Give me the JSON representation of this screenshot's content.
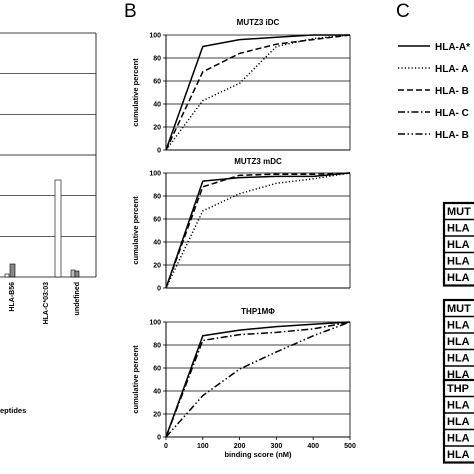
{
  "panels": {
    "b_letter": "B",
    "c_letter": "C"
  },
  "panel_a": {
    "bar_labels": [
      "HLA-B56",
      "HLA-C*03:03",
      "undefined"
    ],
    "footer_text": "eptides"
  },
  "chart_data": [
    {
      "type": "line",
      "title": "MUTZ3 iDC",
      "xlabel": "",
      "ylabel": "cumulative percent",
      "xlim": [
        0,
        500
      ],
      "ylim": [
        0,
        100
      ],
      "xticks": [],
      "yticks": [
        0,
        20,
        40,
        60,
        80,
        100
      ],
      "grid": true,
      "series": [
        {
          "style": "solid",
          "x": [
            0,
            100,
            200,
            300,
            400,
            500
          ],
          "y": [
            0,
            90,
            96,
            98,
            100,
            100
          ]
        },
        {
          "style": "dotted",
          "x": [
            0,
            100,
            200,
            300,
            400,
            500
          ],
          "y": [
            0,
            43,
            58,
            90,
            97,
            100
          ]
        },
        {
          "style": "dashed",
          "x": [
            0,
            100,
            200,
            300,
            400,
            500
          ],
          "y": [
            0,
            68,
            84,
            92,
            96,
            100
          ]
        }
      ]
    },
    {
      "type": "line",
      "title": "MUTZ3 mDC",
      "xlabel": "",
      "ylabel": "cumulative percent",
      "xlim": [
        0,
        500
      ],
      "ylim": [
        0,
        100
      ],
      "xticks": [],
      "yticks": [
        0,
        20,
        40,
        60,
        80,
        100
      ],
      "grid": true,
      "series": [
        {
          "style": "solid",
          "x": [
            0,
            100,
            200,
            300,
            400,
            500
          ],
          "y": [
            0,
            93,
            96,
            97,
            97,
            100
          ]
        },
        {
          "style": "dotted",
          "x": [
            0,
            100,
            200,
            300,
            400,
            500
          ],
          "y": [
            0,
            67,
            82,
            91,
            95,
            100
          ]
        },
        {
          "style": "dashed",
          "x": [
            0,
            100,
            200,
            300,
            400,
            500
          ],
          "y": [
            0,
            88,
            98,
            99,
            99,
            100
          ]
        }
      ]
    },
    {
      "type": "line",
      "title": "THP1MΦ",
      "xlabel": "binding score (nM)",
      "ylabel": "cumulative percent",
      "xlim": [
        0,
        500
      ],
      "ylim": [
        0,
        100
      ],
      "xticks": [
        0,
        100,
        200,
        300,
        400,
        500
      ],
      "yticks": [
        0,
        20,
        40,
        60,
        80,
        100
      ],
      "grid": true,
      "series": [
        {
          "style": "solid",
          "x": [
            0,
            100,
            200,
            300,
            400,
            500
          ],
          "y": [
            0,
            88,
            93,
            96,
            98,
            100
          ]
        },
        {
          "style": "dash-dot",
          "x": [
            0,
            100,
            200,
            300,
            400,
            500
          ],
          "y": [
            0,
            84,
            89,
            91,
            94,
            100
          ]
        },
        {
          "style": "dash-dot-dot",
          "x": [
            0,
            100,
            200,
            300,
            400,
            500
          ],
          "y": [
            0,
            36,
            59,
            74,
            88,
            100
          ]
        }
      ]
    }
  ],
  "legend": {
    "entries": [
      {
        "label": "HLA-A*",
        "style": "solid"
      },
      {
        "label": "HLA- A",
        "style": "dotted"
      },
      {
        "label": "HLA- B",
        "style": "dashed"
      },
      {
        "label": "HLA- C",
        "style": "dash-dot"
      },
      {
        "label": "HLA- B",
        "style": "dash-dot-dot"
      }
    ]
  },
  "tables": [
    {
      "rows": [
        "MUT",
        "HLA",
        "HLA",
        "HLA",
        "HLA"
      ]
    },
    {
      "rows": [
        "MUT",
        "HLA",
        "HLA",
        "HLA",
        "HLA"
      ]
    },
    {
      "rows": [
        "THP",
        "HLA",
        "HLA",
        "HLA",
        "HLA"
      ]
    }
  ]
}
